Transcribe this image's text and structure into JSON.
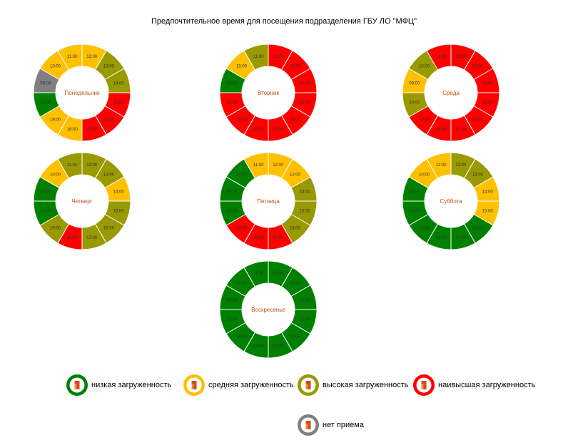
{
  "title": "Предпочтительное время для посещения подразделения ГБУ ЛО \"МФЦ\"",
  "colors": {
    "low": "#008000",
    "medium": "#ffc000",
    "high": "#999900",
    "highest": "#ff0000",
    "closed": "#808080"
  },
  "legend": [
    {
      "key": "low",
      "label": "низкая загруженность"
    },
    {
      "key": "medium",
      "label": "средняя загруженность"
    },
    {
      "key": "high",
      "label": "высокая загруженность"
    },
    {
      "key": "highest",
      "label": "наивысшая загруженность"
    },
    {
      "key": "closed",
      "label": "нет приема"
    }
  ],
  "chart_data": {
    "type": "pie",
    "variant": "donut",
    "hours": [
      "12:00",
      "13:00",
      "14:00",
      "15:00",
      "16:00",
      "17:00",
      "18:00",
      "19:00",
      "20:00",
      "09:00",
      "10:00",
      "11:00"
    ],
    "days": [
      {
        "name": "Понедельник",
        "levels": [
          "medium",
          "high",
          "high",
          "highest",
          "highest",
          "highest",
          "medium",
          "medium",
          "low",
          "closed",
          "medium",
          "medium"
        ]
      },
      {
        "name": "Вторник",
        "levels": [
          "highest",
          "highest",
          "highest",
          "highest",
          "highest",
          "highest",
          "highest",
          "highest",
          "highest",
          "low",
          "medium",
          "high"
        ]
      },
      {
        "name": "Среда",
        "levels": [
          "highest",
          "highest",
          "highest",
          "highest",
          "highest",
          "highest",
          "highest",
          "highest",
          "high",
          "medium",
          "high",
          "highest"
        ]
      },
      {
        "name": "Четверг",
        "levels": [
          "high",
          "high",
          "medium",
          "high",
          "high",
          "high",
          "highest",
          "high",
          "low",
          "low",
          "medium",
          "high"
        ]
      },
      {
        "name": "Пятница",
        "levels": [
          "medium",
          "medium",
          "high",
          "high",
          "high",
          "highest",
          "highest",
          "highest",
          "low",
          "low",
          "low",
          "medium"
        ]
      },
      {
        "name": "Суббота",
        "levels": [
          "high",
          "high",
          "medium",
          "medium",
          "low",
          "low",
          "low",
          "low",
          "low",
          "low",
          "medium",
          "medium"
        ]
      },
      {
        "name": "Воскресенье",
        "levels": [
          "low",
          "low",
          "low",
          "low",
          "low",
          "low",
          "low",
          "low",
          "low",
          "low",
          "low",
          "low"
        ]
      }
    ]
  }
}
